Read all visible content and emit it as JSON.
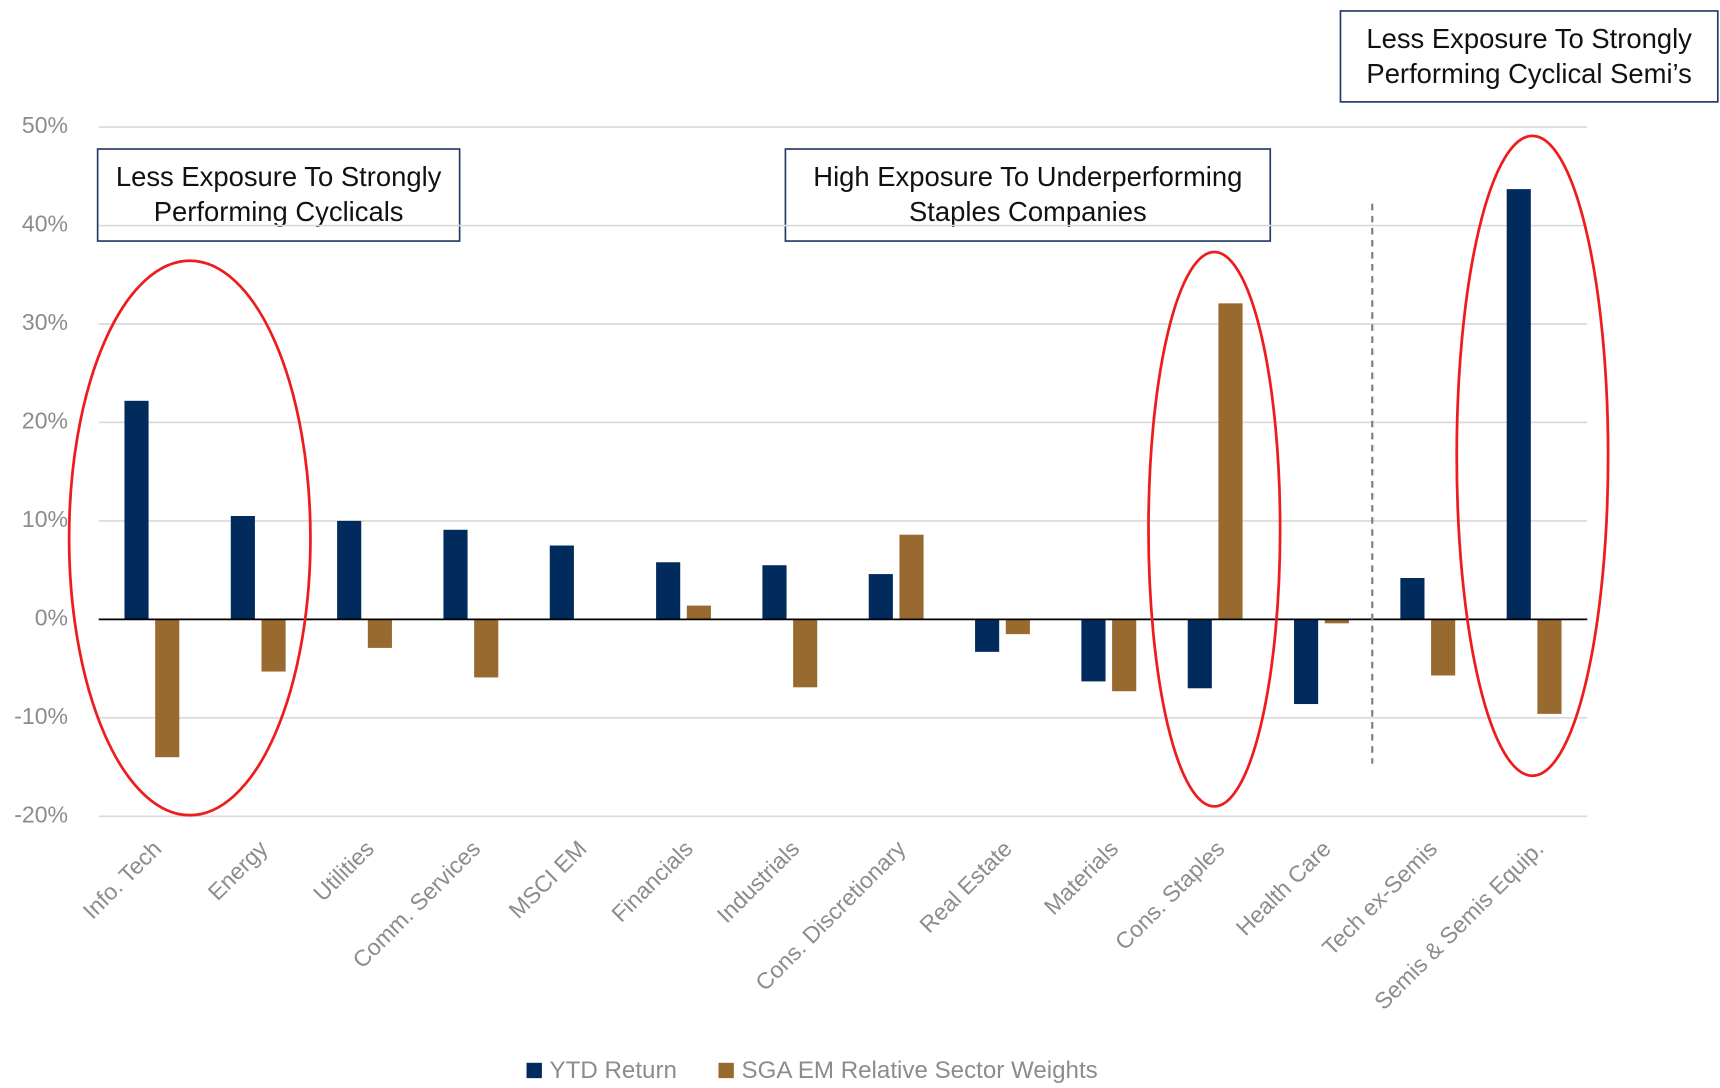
{
  "chart_data": {
    "type": "bar",
    "categories": [
      "Info. Tech",
      "Energy",
      "Utilities",
      "Comm. Services",
      "MSCI EM",
      "Financials",
      "Industrials",
      "Cons. Discretionary",
      "Real Estate",
      "Materials",
      "Cons. Staples",
      "Health Care",
      "Tech ex-Semis",
      "Semis & Semis Equip."
    ],
    "series": [
      {
        "name": "YTD Return",
        "color": "#002b5c",
        "values": [
          22.2,
          10.5,
          10.0,
          9.1,
          7.5,
          5.8,
          5.5,
          4.6,
          -3.3,
          -6.3,
          -7.0,
          -8.6,
          4.2,
          43.7
        ]
      },
      {
        "name": "SGA EM Relative Sector Weights",
        "color": "#996a2f",
        "values": [
          -14.0,
          -5.3,
          -2.9,
          -5.9,
          0,
          1.4,
          -6.9,
          8.6,
          -1.5,
          -7.3,
          32.1,
          -0.4,
          -5.7,
          -9.6
        ]
      }
    ],
    "ylim": [
      -20,
      50
    ],
    "yticks": [
      {
        "value": -20,
        "label": "-20%"
      },
      {
        "value": -10,
        "label": "-10%"
      },
      {
        "value": 0,
        "label": "0%"
      },
      {
        "value": 10,
        "label": "10%"
      },
      {
        "value": 20,
        "label": "20%"
      },
      {
        "value": 30,
        "label": "30%"
      },
      {
        "value": 40,
        "label": "40%"
      },
      {
        "value": 50,
        "label": "50%"
      }
    ],
    "grid": true,
    "legend": "bottom",
    "annotations": [
      {
        "lines": [
          "Less Exposure To Strongly",
          "Performing Cyclicals"
        ]
      },
      {
        "lines": [
          "High Exposure To Underperforming",
          "Staples Companies"
        ]
      },
      {
        "lines": [
          "Less Exposure To Strongly",
          "Performing Cyclical Semi’s"
        ]
      }
    ]
  }
}
